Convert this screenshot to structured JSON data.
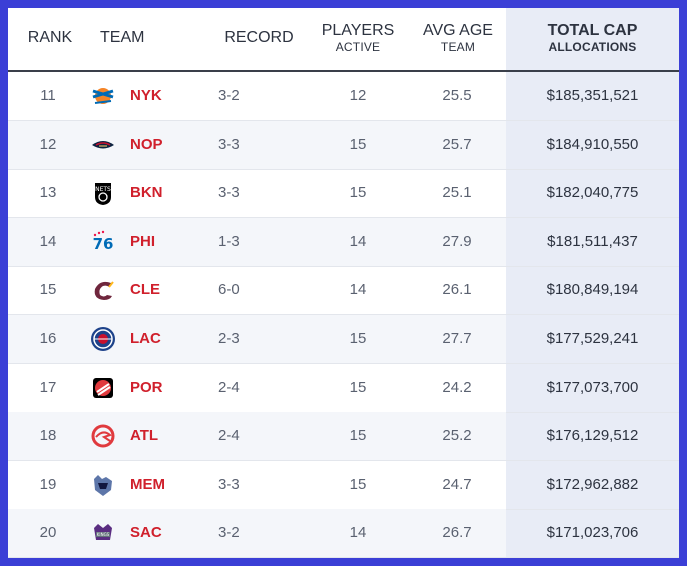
{
  "columns": {
    "rank": "RANK",
    "team": "TEAM",
    "record": "RECORD",
    "players_main": "PLAYERS",
    "players_sub": "ACTIVE",
    "age_main": "AVG AGE",
    "age_sub": "TEAM",
    "cap_main": "TOTAL CAP",
    "cap_sub": "ALLOCATIONS"
  },
  "colors": {
    "border": "#3b3fd6",
    "team_text": "#d0202c",
    "highlight_column": "#e8ecf6"
  },
  "rows": [
    {
      "rank": "11",
      "team": "NYK",
      "logo": "knicks-logo",
      "record": "3-2",
      "players": "12",
      "age": "25.5",
      "cap": "$185,351,521"
    },
    {
      "rank": "12",
      "team": "NOP",
      "logo": "pelicans-logo",
      "record": "3-3",
      "players": "15",
      "age": "25.7",
      "cap": "$184,910,550"
    },
    {
      "rank": "13",
      "team": "BKN",
      "logo": "nets-logo",
      "record": "3-3",
      "players": "15",
      "age": "25.1",
      "cap": "$182,040,775"
    },
    {
      "rank": "14",
      "team": "PHI",
      "logo": "76ers-logo",
      "record": "1-3",
      "players": "14",
      "age": "27.9",
      "cap": "$181,511,437"
    },
    {
      "rank": "15",
      "team": "CLE",
      "logo": "cavaliers-logo",
      "record": "6-0",
      "players": "14",
      "age": "26.1",
      "cap": "$180,849,194"
    },
    {
      "rank": "16",
      "team": "LAC",
      "logo": "clippers-logo",
      "record": "2-3",
      "players": "15",
      "age": "27.7",
      "cap": "$177,529,241"
    },
    {
      "rank": "17",
      "team": "POR",
      "logo": "blazers-logo",
      "record": "2-4",
      "players": "15",
      "age": "24.2",
      "cap": "$177,073,700"
    },
    {
      "rank": "18",
      "team": "ATL",
      "logo": "hawks-logo",
      "record": "2-4",
      "players": "15",
      "age": "25.2",
      "cap": "$176,129,512"
    },
    {
      "rank": "19",
      "team": "MEM",
      "logo": "grizzlies-logo",
      "record": "3-3",
      "players": "15",
      "age": "24.7",
      "cap": "$172,962,882"
    },
    {
      "rank": "20",
      "team": "SAC",
      "logo": "kings-logo",
      "record": "3-2",
      "players": "14",
      "age": "26.7",
      "cap": "$171,023,706"
    }
  ]
}
